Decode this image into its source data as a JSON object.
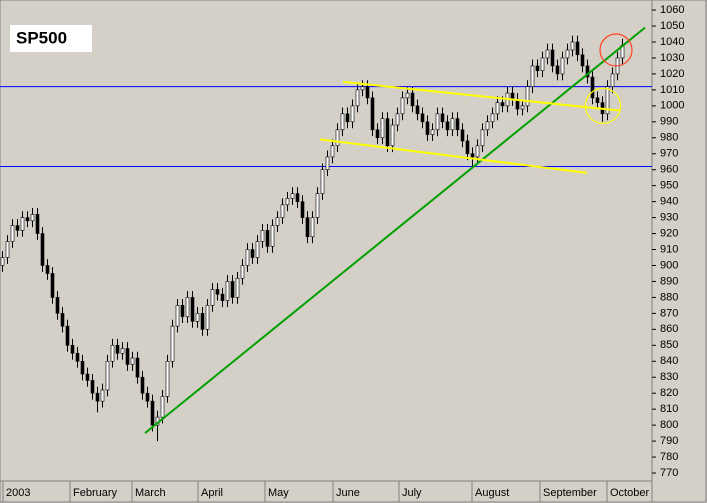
{
  "chart_data": {
    "type": "candlestick",
    "title": "SP500",
    "ylim": [
      765,
      1066.3
    ],
    "yticks": [
      770,
      780,
      790,
      800,
      810,
      820,
      830,
      840,
      850,
      860,
      870,
      880,
      890,
      900,
      910,
      920,
      930,
      940,
      950,
      960,
      970,
      980,
      990,
      1000,
      1010,
      1020,
      1030,
      1040,
      1050,
      1060
    ],
    "xlim": [
      0,
      130.4
    ],
    "xticks": [
      {
        "value": 0.6,
        "label": "2003"
      },
      {
        "value": 14,
        "label": "February"
      },
      {
        "value": 26.4,
        "label": "March"
      },
      {
        "value": 39.6,
        "label": "April"
      },
      {
        "value": 53,
        "label": "May"
      },
      {
        "value": 66.6,
        "label": "June"
      },
      {
        "value": 79.8,
        "label": "July"
      },
      {
        "value": 94.4,
        "label": "August"
      },
      {
        "value": 108,
        "label": "September"
      },
      {
        "value": 121.4,
        "label": "October"
      }
    ],
    "open": [
      900,
      905,
      915,
      925,
      922,
      930,
      928,
      932,
      920,
      900,
      895,
      880,
      870,
      862,
      850,
      845,
      840,
      832,
      828,
      820,
      815,
      822,
      840,
      850,
      845,
      848,
      838,
      842,
      830,
      820,
      815,
      800,
      805,
      818,
      840,
      862,
      875,
      868,
      880,
      865,
      870,
      860,
      875,
      885,
      882,
      878,
      890,
      880,
      892,
      900,
      910,
      905,
      915,
      922,
      912,
      925,
      930,
      938,
      942,
      945,
      940,
      930,
      918,
      930,
      945,
      960,
      968,
      975,
      985,
      995,
      990,
      1000,
      1010,
      1012,
      1005,
      985,
      980,
      992,
      975,
      988,
      995,
      1005,
      1008,
      1000,
      995,
      990,
      982,
      985,
      995,
      990,
      985,
      992,
      985,
      978,
      970,
      968,
      975,
      985,
      990,
      995,
      1002,
      1000,
      1008,
      1004,
      998,
      1000,
      1012,
      1025,
      1022,
      1030,
      1035,
      1025,
      1020,
      1030,
      1035,
      1040,
      1032,
      1025,
      1018,
      1005,
      1002,
      995,
      1012,
      1020,
      1030
    ],
    "high": [
      909,
      919,
      929,
      929,
      934,
      934,
      936,
      936,
      924,
      904,
      899,
      884,
      874,
      866,
      854,
      849,
      844,
      836,
      832,
      824,
      826,
      844,
      854,
      854,
      852,
      852,
      846,
      846,
      834,
      824,
      819,
      809,
      822,
      844,
      866,
      879,
      879,
      884,
      884,
      874,
      874,
      879,
      889,
      889,
      886,
      894,
      894,
      896,
      904,
      914,
      914,
      919,
      926,
      926,
      929,
      934,
      942,
      946,
      949,
      949,
      944,
      934,
      934,
      949,
      964,
      972,
      979,
      989,
      999,
      999,
      1004,
      1014,
      1016,
      1016,
      1009,
      989,
      996,
      996,
      992,
      999,
      1009,
      1012,
      1012,
      1004,
      999,
      994,
      989,
      999,
      999,
      994,
      996,
      996,
      989,
      982,
      974,
      979,
      989,
      994,
      999,
      1006,
      1006,
      1012,
      1012,
      1008,
      1004,
      1016,
      1029,
      1029,
      1034,
      1039,
      1039,
      1029,
      1034,
      1039,
      1044,
      1044,
      1036,
      1029,
      1022,
      1009,
      1006,
      1016,
      1024,
      1034,
      1042
    ],
    "low": [
      896,
      901,
      911,
      918,
      918,
      924,
      924,
      916,
      896,
      891,
      876,
      866,
      858,
      846,
      841,
      836,
      828,
      824,
      816,
      808,
      811,
      818,
      836,
      841,
      841,
      834,
      834,
      826,
      816,
      811,
      796,
      790,
      801,
      814,
      836,
      858,
      864,
      864,
      861,
      861,
      856,
      856,
      871,
      878,
      874,
      874,
      876,
      876,
      888,
      896,
      901,
      901,
      911,
      908,
      908,
      921,
      926,
      934,
      938,
      936,
      926,
      914,
      914,
      926,
      941,
      956,
      964,
      971,
      981,
      986,
      986,
      996,
      1006,
      1001,
      981,
      976,
      976,
      971,
      971,
      984,
      991,
      1001,
      996,
      991,
      986,
      978,
      978,
      981,
      986,
      981,
      981,
      981,
      974,
      966,
      962,
      964,
      971,
      981,
      986,
      991,
      996,
      996,
      1000,
      994,
      994,
      996,
      1008,
      1018,
      1018,
      1026,
      1021,
      1016,
      1016,
      1026,
      1031,
      1028,
      1021,
      1014,
      1001,
      998,
      990,
      991,
      1008,
      1016,
      1026
    ],
    "close": [
      905,
      915,
      925,
      922,
      930,
      928,
      932,
      920,
      900,
      895,
      880,
      870,
      862,
      850,
      845,
      840,
      832,
      828,
      820,
      815,
      822,
      840,
      850,
      845,
      848,
      838,
      842,
      830,
      820,
      815,
      800,
      805,
      818,
      840,
      862,
      875,
      868,
      880,
      865,
      870,
      860,
      875,
      885,
      882,
      878,
      890,
      880,
      892,
      900,
      910,
      905,
      915,
      922,
      912,
      925,
      930,
      938,
      942,
      945,
      940,
      930,
      918,
      930,
      945,
      960,
      968,
      975,
      985,
      995,
      990,
      1000,
      1010,
      1012,
      1005,
      985,
      980,
      992,
      975,
      988,
      995,
      1005,
      1008,
      1000,
      995,
      990,
      982,
      985,
      995,
      990,
      985,
      992,
      985,
      978,
      970,
      968,
      975,
      985,
      990,
      995,
      1002,
      1000,
      1008,
      1004,
      998,
      1000,
      1012,
      1025,
      1022,
      1030,
      1035,
      1025,
      1020,
      1030,
      1035,
      1040,
      1032,
      1025,
      1018,
      1005,
      1002,
      995,
      1012,
      1020,
      1030,
      1038
    ],
    "hlines": [
      {
        "value": 1012,
        "color": "#0000ff"
      },
      {
        "value": 962,
        "color": "#0000ff"
      }
    ],
    "lines": [
      {
        "x": [
          29,
          129
        ],
        "y": [
          795,
          1049
        ],
        "color": "#00a000"
      },
      {
        "x": [
          68.6,
          124
        ],
        "y": [
          1015,
          997
        ],
        "color": "#ffff00"
      },
      {
        "x": [
          64,
          117.4
        ],
        "y": [
          979,
          958
        ],
        "color": "#ffff00"
      }
    ],
    "circles": [
      {
        "x": 123.2,
        "y": 1035,
        "r": 10,
        "color": "#ff4020"
      },
      {
        "x": 120.6,
        "y": 1000,
        "r": 11,
        "color": "#ffff00"
      }
    ]
  }
}
